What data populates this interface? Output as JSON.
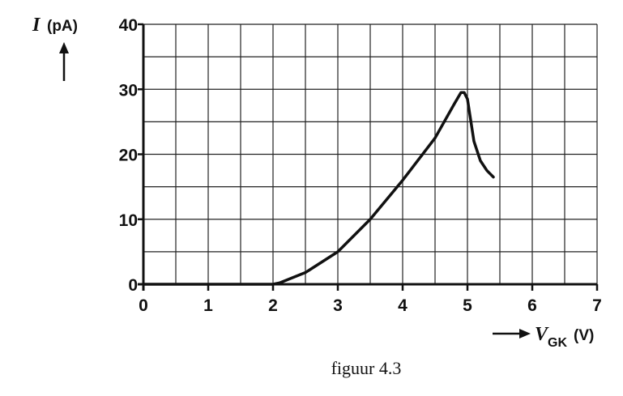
{
  "chart_data": {
    "type": "line",
    "caption": "figuur 4.3",
    "ylabel": {
      "symbol": "I",
      "unit": "(pA)"
    },
    "xlabel": {
      "symbol": "V",
      "subscript": "GK",
      "unit": "(V)"
    },
    "xlim": [
      0,
      7
    ],
    "xticks": [
      0,
      1,
      2,
      3,
      4,
      5,
      6,
      7
    ],
    "x_minor_ticks": [
      0.5,
      1.5,
      2.5,
      3.5,
      4.5,
      5.5,
      6.5
    ],
    "ylim": [
      0,
      40
    ],
    "yticks": [
      0,
      10,
      20,
      30,
      40
    ],
    "y_minor_ticks": [
      5,
      15,
      25,
      35
    ],
    "grid": true,
    "series": [
      {
        "color": "#111111",
        "x": [
          0,
          1,
          2,
          2.1,
          2.5,
          3,
          3.5,
          4,
          4.5,
          4.8,
          4.9,
          4.95,
          5.0,
          5.1,
          5.2,
          5.3,
          5.4
        ],
        "values": [
          0,
          0,
          0,
          0.2,
          1.8,
          5,
          10,
          16,
          22.5,
          27.8,
          29.5,
          29.5,
          28.5,
          22,
          19,
          17.5,
          16.5
        ]
      }
    ]
  }
}
